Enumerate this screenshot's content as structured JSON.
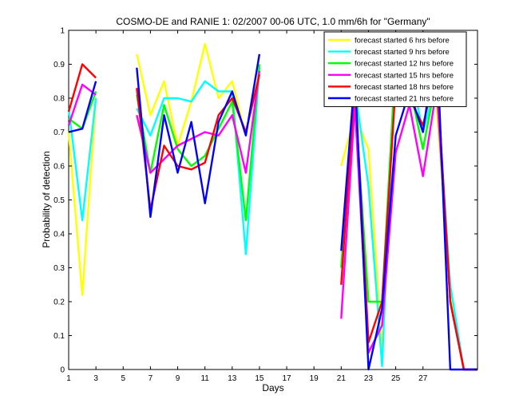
{
  "chart_data": {
    "type": "line",
    "title": "COSMO-DE and RANIE 1: 02/2007 00-06 UTC, 1.0 mm/6h for \"Germany\"",
    "xlabel": "Days",
    "ylabel": "Probability of detection",
    "xlim": [
      1,
      31
    ],
    "ylim": [
      0,
      1
    ],
    "xticks": [
      "1",
      "3",
      "5",
      "7",
      "9",
      "11",
      "13",
      "15",
      "17",
      "19",
      "21",
      "23",
      "25",
      "27"
    ],
    "yticks": [
      "0",
      "0.1",
      "0.2",
      "0.3",
      "0.4",
      "0.5",
      "0.6",
      "0.7",
      "0.8",
      "0.9",
      "1"
    ],
    "grid": false,
    "legend_position": "top-right",
    "series": [
      {
        "name": "forecast started 6 hrs before",
        "color": "#ffff00",
        "values": [
          [
            1,
            0.7
          ],
          [
            2,
            0.22
          ],
          [
            3,
            0.8
          ],
          null,
          [
            6,
            0.93
          ],
          [
            7,
            0.75
          ],
          [
            8,
            0.85
          ],
          [
            9,
            0.66
          ],
          [
            10,
            0.79
          ],
          [
            11,
            0.96
          ],
          [
            12,
            0.8
          ],
          [
            13,
            0.85
          ],
          [
            14,
            0.69
          ],
          [
            15,
            0.92
          ],
          null,
          [
            21,
            0.6
          ],
          [
            22,
            0.75
          ],
          [
            23,
            0.65
          ],
          [
            24,
            0.05
          ],
          [
            25,
            0.94
          ],
          [
            26,
            0.9
          ],
          [
            27,
            0.8
          ],
          [
            28,
            0.78
          ],
          [
            29,
            0.22
          ],
          [
            30,
            0.0
          ],
          [
            31,
            0.0
          ]
        ]
      },
      {
        "name": "forecast started 9 hrs before",
        "color": "#00ffff",
        "values": [
          [
            1,
            0.77
          ],
          [
            2,
            0.44
          ],
          [
            3,
            0.8
          ],
          null,
          [
            6,
            0.77
          ],
          [
            7,
            0.69
          ],
          [
            8,
            0.8
          ],
          [
            9,
            0.8
          ],
          [
            10,
            0.79
          ],
          [
            11,
            0.85
          ],
          [
            12,
            0.82
          ],
          [
            13,
            0.82
          ],
          [
            14,
            0.34
          ],
          [
            15,
            0.89
          ],
          null,
          [
            21,
            0.3
          ],
          [
            22,
            0.83
          ],
          [
            23,
            0.54
          ],
          [
            24,
            0.01
          ],
          [
            25,
            0.95
          ],
          [
            26,
            0.9
          ],
          [
            27,
            0.7
          ],
          [
            28,
            0.85
          ],
          [
            29,
            0.25
          ],
          [
            30,
            0.0
          ],
          [
            31,
            0.0
          ]
        ]
      },
      {
        "name": "forecast started 12 hrs before",
        "color": "#00ff00",
        "values": [
          [
            1,
            0.74
          ],
          [
            2,
            0.71
          ],
          [
            3,
            0.82
          ],
          null,
          [
            6,
            0.81
          ],
          [
            7,
            0.58
          ],
          [
            8,
            0.78
          ],
          [
            9,
            0.65
          ],
          [
            10,
            0.6
          ],
          [
            11,
            0.63
          ],
          [
            12,
            0.71
          ],
          [
            13,
            0.79
          ],
          [
            14,
            0.44
          ],
          [
            15,
            0.9
          ],
          null,
          [
            21,
            0.3
          ],
          [
            22,
            0.8
          ],
          [
            23,
            0.2
          ],
          [
            24,
            0.2
          ],
          [
            25,
            0.92
          ],
          [
            26,
            0.84
          ],
          [
            27,
            0.65
          ],
          [
            28,
            0.86
          ],
          [
            29,
            0.2
          ],
          [
            30,
            0.0
          ],
          [
            31,
            0.0
          ]
        ]
      },
      {
        "name": "forecast started 15 hrs before",
        "color": "#ff00ff",
        "values": [
          [
            1,
            0.72
          ],
          [
            2,
            0.84
          ],
          [
            3,
            0.81
          ],
          null,
          [
            6,
            0.75
          ],
          [
            7,
            0.58
          ],
          [
            8,
            0.62
          ],
          [
            9,
            0.66
          ],
          [
            10,
            0.68
          ],
          [
            11,
            0.7
          ],
          [
            12,
            0.69
          ],
          [
            13,
            0.75
          ],
          [
            14,
            0.58
          ],
          [
            15,
            0.88
          ],
          null,
          [
            21,
            0.15
          ],
          [
            22,
            0.78
          ],
          [
            23,
            0.05
          ],
          [
            24,
            0.13
          ],
          [
            25,
            0.64
          ],
          [
            26,
            0.78
          ],
          [
            27,
            0.57
          ],
          [
            28,
            0.83
          ],
          [
            29,
            0.2
          ],
          [
            30,
            0.0
          ],
          [
            31,
            0.0
          ]
        ]
      },
      {
        "name": "forecast started 18 hrs before",
        "color": "#ff0000",
        "values": [
          [
            1,
            0.76
          ],
          [
            2,
            0.9
          ],
          [
            3,
            0.86
          ],
          null,
          [
            6,
            0.83
          ],
          [
            7,
            0.47
          ],
          [
            8,
            0.66
          ],
          [
            9,
            0.6
          ],
          [
            10,
            0.59
          ],
          [
            11,
            0.61
          ],
          [
            12,
            0.75
          ],
          [
            13,
            0.8
          ],
          [
            14,
            0.7
          ],
          [
            15,
            0.87
          ],
          null,
          [
            21,
            0.25
          ],
          [
            22,
            0.85
          ],
          [
            23,
            0.08
          ],
          [
            24,
            0.2
          ],
          [
            25,
            0.84
          ],
          [
            26,
            0.8
          ],
          [
            27,
            0.72
          ],
          [
            28,
            0.89
          ],
          [
            29,
            0.2
          ],
          [
            30,
            0.0
          ],
          [
            31,
            0.0
          ]
        ]
      },
      {
        "name": "forecast started 21 hrs before",
        "color": "#0000ff",
        "values": [
          [
            1,
            0.7
          ],
          [
            2,
            0.71
          ],
          [
            3,
            0.85
          ],
          null,
          [
            6,
            0.89
          ],
          [
            7,
            0.45
          ],
          [
            8,
            0.75
          ],
          [
            9,
            0.58
          ],
          [
            10,
            0.73
          ],
          [
            11,
            0.49
          ],
          [
            12,
            0.73
          ],
          [
            13,
            0.82
          ],
          [
            14,
            0.69
          ],
          [
            15,
            0.93
          ],
          null,
          [
            21,
            0.35
          ],
          [
            22,
            0.87
          ],
          [
            23,
            0.0
          ],
          [
            24,
            0.18
          ],
          [
            25,
            0.69
          ],
          [
            26,
            0.82
          ],
          [
            27,
            0.7
          ],
          [
            28,
            0.98
          ],
          [
            29,
            0.0
          ],
          [
            30,
            0.0
          ],
          [
            31,
            0.0
          ]
        ]
      }
    ]
  }
}
